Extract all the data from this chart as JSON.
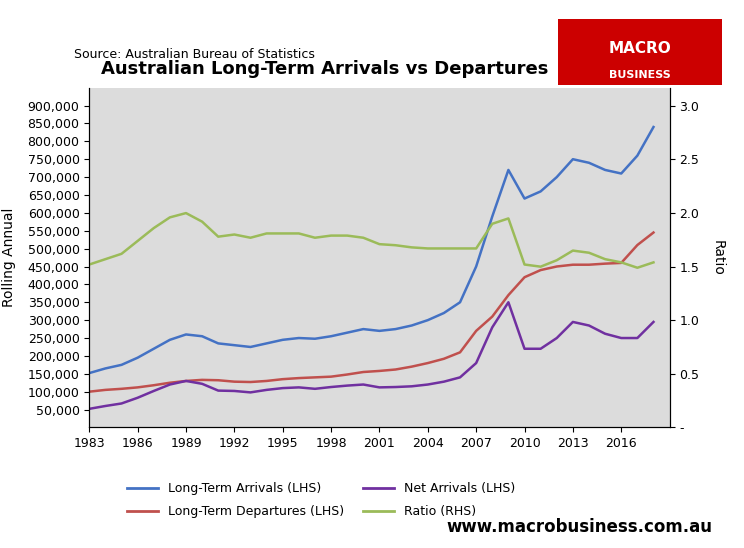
{
  "title": "Australian Long-Term Arrivals vs Departures",
  "source": "Source: Australian Bureau of Statistics",
  "ylabel_left": "Rolling Annual",
  "ylabel_right": "Ratio",
  "website": "www.macrobusiness.com.au",
  "colors": {
    "arrivals": "#4472C4",
    "departures": "#C0504D",
    "net": "#7030A0",
    "ratio": "#9BBB59",
    "background": "#DCDCDC"
  },
  "years": [
    1983,
    1984,
    1985,
    1986,
    1987,
    1988,
    1989,
    1990,
    1991,
    1992,
    1993,
    1994,
    1995,
    1996,
    1997,
    1998,
    1999,
    2000,
    2001,
    2002,
    2003,
    2004,
    2005,
    2006,
    2007,
    2008,
    2009,
    2010,
    2011,
    2012,
    2013,
    2014,
    2015,
    2016,
    2017,
    2018
  ],
  "arrivals": [
    152000,
    165000,
    175000,
    195000,
    220000,
    245000,
    260000,
    255000,
    235000,
    230000,
    225000,
    235000,
    245000,
    250000,
    248000,
    255000,
    265000,
    275000,
    270000,
    275000,
    285000,
    300000,
    320000,
    350000,
    450000,
    590000,
    720000,
    640000,
    660000,
    700000,
    750000,
    740000,
    720000,
    710000,
    760000,
    840000
  ],
  "departures": [
    100000,
    105000,
    108000,
    112000,
    118000,
    125000,
    130000,
    133000,
    132000,
    128000,
    127000,
    130000,
    135000,
    138000,
    140000,
    142000,
    148000,
    155000,
    158000,
    162000,
    170000,
    180000,
    192000,
    210000,
    270000,
    310000,
    370000,
    420000,
    440000,
    450000,
    455000,
    455000,
    458000,
    460000,
    510000,
    545000
  ],
  "net": [
    52000,
    60000,
    67000,
    83000,
    102000,
    120000,
    130000,
    122000,
    103000,
    102000,
    98000,
    105000,
    110000,
    112000,
    108000,
    113000,
    117000,
    120000,
    112000,
    113000,
    115000,
    120000,
    128000,
    140000,
    180000,
    280000,
    350000,
    220000,
    220000,
    250000,
    295000,
    285000,
    262000,
    250000,
    250000,
    295000
  ],
  "ratio": [
    1.52,
    1.57,
    1.62,
    1.74,
    1.86,
    1.96,
    2.0,
    1.92,
    1.78,
    1.8,
    1.77,
    1.81,
    1.81,
    1.81,
    1.77,
    1.79,
    1.79,
    1.77,
    1.71,
    1.7,
    1.68,
    1.67,
    1.67,
    1.67,
    1.67,
    1.9,
    1.95,
    1.52,
    1.5,
    1.56,
    1.65,
    1.63,
    1.57,
    1.54,
    1.49,
    1.54
  ],
  "ylim_left": [
    0,
    950000
  ],
  "ylim_right": [
    0,
    3.17
  ],
  "yticks_left": [
    50000,
    100000,
    150000,
    200000,
    250000,
    300000,
    350000,
    400000,
    450000,
    500000,
    550000,
    600000,
    650000,
    700000,
    750000,
    800000,
    850000,
    900000
  ],
  "yticks_right": [
    0.0,
    0.5,
    1.0,
    1.5,
    2.0,
    2.5,
    3.0
  ],
  "xticks": [
    1983,
    1986,
    1989,
    1992,
    1995,
    1998,
    2001,
    2004,
    2007,
    2010,
    2013,
    2016
  ],
  "macro_red": "#CC0000",
  "macro_text": "MACRO\nBUSINESS"
}
